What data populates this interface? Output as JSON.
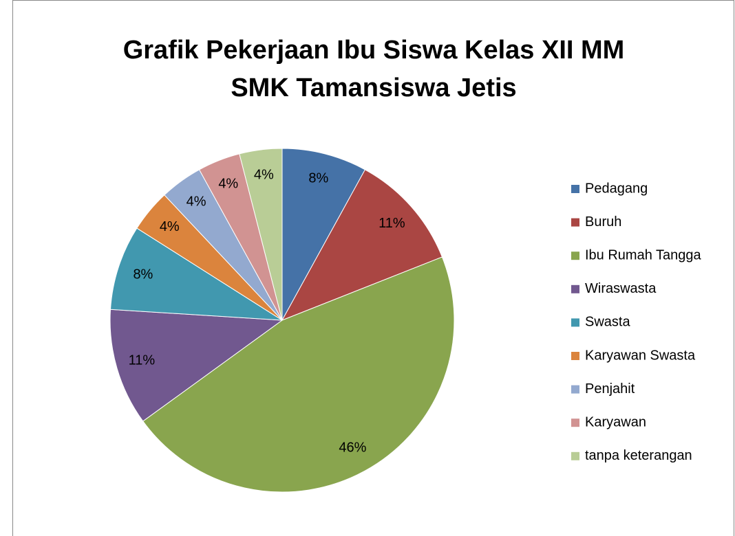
{
  "chart_data": {
    "type": "pie",
    "title": [
      "Grafik Pekerjaan Ibu Siswa Kelas XII MM",
      "SMK Tamansiswa Jetis"
    ],
    "categories": [
      "Pedagang",
      "Buruh",
      "Ibu Rumah Tangga",
      "Wiraswasta",
      "Swasta",
      "Karyawan Swasta",
      "Penjahit",
      "Karyawan",
      "tanpa keterangan"
    ],
    "values": [
      8,
      11,
      46,
      11,
      8,
      4,
      4,
      4,
      4
    ],
    "value_labels": [
      "8%",
      "11%",
      "46%",
      "11%",
      "8%",
      "4%",
      "4%",
      "4%",
      "4%"
    ],
    "colors": [
      "#4572A7",
      "#AA4643",
      "#89A54E",
      "#71588F",
      "#4198AF",
      "#DB843D",
      "#93A9CF",
      "#D19392",
      "#B9CD96"
    ],
    "legend": "right"
  }
}
